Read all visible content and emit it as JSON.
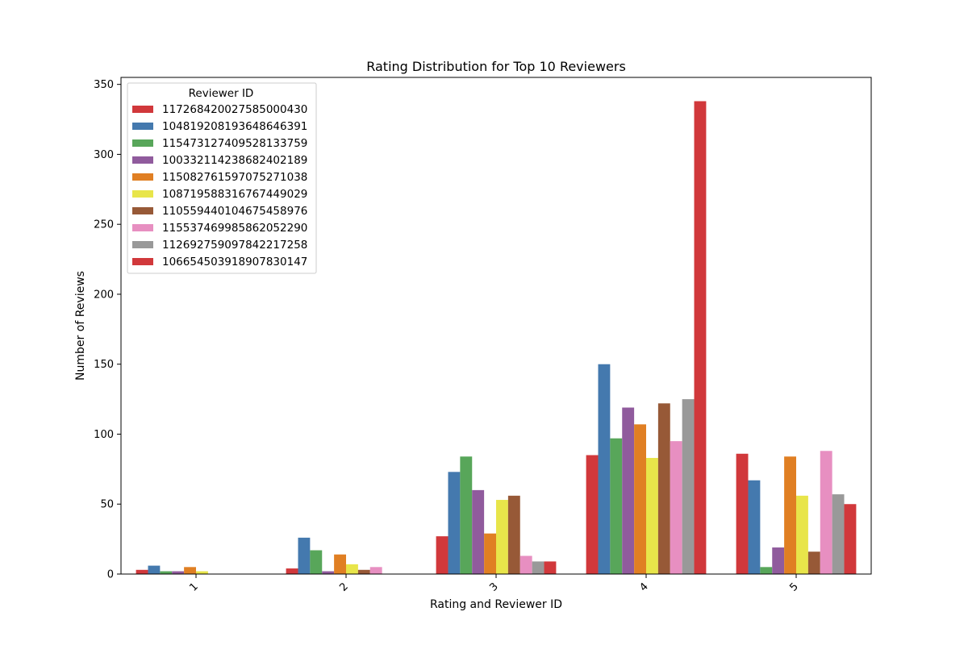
{
  "chart_data": {
    "type": "bar",
    "title": "Rating Distribution for Top 10 Reviewers",
    "xlabel": "Rating and Reviewer ID",
    "ylabel": "Number of Reviews",
    "categories": [
      "1",
      "2",
      "3",
      "4",
      "5"
    ],
    "ylim": [
      0,
      355
    ],
    "yticks": [
      0,
      50,
      100,
      150,
      200,
      250,
      300,
      350
    ],
    "grid": false,
    "legend": {
      "title": "Reviewer ID",
      "placement": "upper-left"
    },
    "series": [
      {
        "name": "117268420027585000430",
        "color": "#d1383b",
        "values": [
          3,
          4,
          27,
          85,
          86
        ]
      },
      {
        "name": "104819208193648646391",
        "color": "#4479ae",
        "values": [
          6,
          26,
          73,
          150,
          67
        ]
      },
      {
        "name": "115473127409528133759",
        "color": "#58a65a",
        "values": [
          2,
          17,
          84,
          97,
          5
        ]
      },
      {
        "name": "100332114238682402189",
        "color": "#905b9d",
        "values": [
          2,
          2,
          60,
          119,
          19
        ]
      },
      {
        "name": "115082761597075271038",
        "color": "#e07f23",
        "values": [
          5,
          14,
          29,
          107,
          84
        ]
      },
      {
        "name": "108719588316767449029",
        "color": "#e8e54a",
        "values": [
          2,
          7,
          53,
          83,
          56
        ]
      },
      {
        "name": "110559440104675458976",
        "color": "#975937",
        "values": [
          0,
          3,
          56,
          122,
          16
        ]
      },
      {
        "name": "115537469985862052290",
        "color": "#e78fc1",
        "values": [
          0,
          5,
          13,
          95,
          88
        ]
      },
      {
        "name": "112692759097842217258",
        "color": "#999999",
        "values": [
          0,
          0,
          9,
          125,
          57
        ]
      },
      {
        "name": "106654503918907830147",
        "color": "#d1383b",
        "values": [
          0,
          0,
          9,
          338,
          50
        ]
      }
    ]
  }
}
